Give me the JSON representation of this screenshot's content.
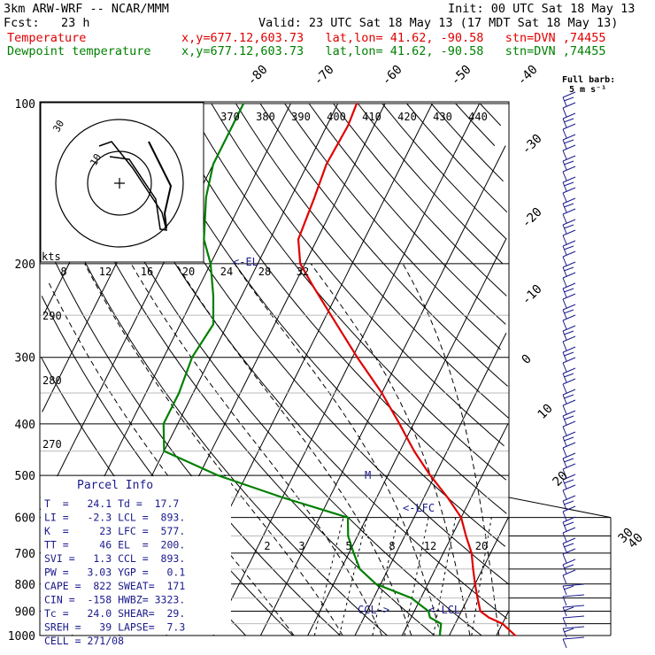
{
  "header": {
    "line1_left": "3km ARW-WRF -- NCAR/MMM",
    "line1_right": "Init: 00 UTC Sat 18 May 13",
    "fcst_label": "Fcst:   23 h",
    "valid": "Valid: 23 UTC Sat 18 May 13 (17 MDT Sat 18 May 13)",
    "series": [
      {
        "name": "Temperature",
        "color": "#e00000",
        "info": "x,y=677.12,603.73   lat,lon= 41.62, -90.58   stn=DVN ,74455"
      },
      {
        "name": "Dewpoint temperature",
        "color": "#008000",
        "info": "x,y=677.12,603.73   lat,lon= 41.62, -90.58   stn=DVN ,74455"
      }
    ]
  },
  "colors": {
    "temperature": "#e00000",
    "dewpoint": "#008000",
    "annotation": "#1a1a8c",
    "grid": "#000000"
  },
  "chart_data": {
    "type": "line",
    "title": "",
    "pressure_ticks": [
      100,
      200,
      300,
      400,
      500,
      600,
      700,
      800,
      900,
      1000
    ],
    "isotherm_labels": [
      -80,
      -70,
      -60,
      -50,
      -40,
      -30,
      -20,
      -10,
      0,
      10,
      20,
      30,
      40
    ],
    "theta_labels": [
      "370",
      "380",
      "390",
      "400",
      "410",
      "420",
      "430",
      "440"
    ],
    "theta_side_labels": [
      "290",
      "280",
      "270"
    ],
    "mixing_ratio_labels": [
      "2",
      "3",
      "5",
      "8",
      "12",
      "20"
    ],
    "hodograph": {
      "units_label": "kts",
      "speed_labels": [
        "8",
        "12",
        "16",
        "20",
        "24",
        "28",
        "32"
      ],
      "ring_labels": [
        "10",
        "30"
      ]
    },
    "wind_barb_caption": [
      "Full barb:",
      "5 m s⁻¹"
    ],
    "levels_annotation": {
      "el": "<-EL",
      "m": "M",
      "lfc": "<-LFC",
      "ccl": "CCL->",
      "lcl": "<-LCL"
    },
    "series": [
      {
        "name": "Temperature",
        "points": [
          [
            1000,
            34
          ],
          [
            950,
            30
          ],
          [
            925,
            26.5
          ],
          [
            900,
            24
          ],
          [
            850,
            22
          ],
          [
            800,
            20
          ],
          [
            750,
            18
          ],
          [
            700,
            16
          ],
          [
            650,
            13
          ],
          [
            600,
            10
          ],
          [
            550,
            5
          ],
          [
            500,
            -1
          ],
          [
            450,
            -7
          ],
          [
            400,
            -13
          ],
          [
            350,
            -20
          ],
          [
            300,
            -29
          ],
          [
            250,
            -39
          ],
          [
            220,
            -46
          ],
          [
            200,
            -51
          ],
          [
            180,
            -54
          ],
          [
            150,
            -55
          ],
          [
            130,
            -56
          ],
          [
            110,
            -55.5
          ],
          [
            100,
            -56
          ]
        ]
      },
      {
        "name": "Dewpoint temperature",
        "points": [
          [
            1000,
            18
          ],
          [
            950,
            17
          ],
          [
            925,
            14
          ],
          [
            900,
            13
          ],
          [
            850,
            8
          ],
          [
            800,
            -1
          ],
          [
            750,
            -6
          ],
          [
            700,
            -9
          ],
          [
            650,
            -12
          ],
          [
            600,
            -14
          ],
          [
            550,
            -30
          ],
          [
            500,
            -46
          ],
          [
            450,
            -60
          ],
          [
            400,
            -63
          ],
          [
            350,
            -63
          ],
          [
            300,
            -64
          ],
          [
            260,
            -63
          ],
          [
            230,
            -66
          ],
          [
            200,
            -70
          ],
          [
            180,
            -74
          ],
          [
            150,
            -78
          ],
          [
            130,
            -80
          ],
          [
            110,
            -80
          ],
          [
            100,
            -80
          ]
        ]
      }
    ]
  },
  "parcel_info": {
    "title": "Parcel Info",
    "lines": [
      "T  =   24.1 Td =  17.7",
      "LI =   -2.3 LCL =  893.",
      "K  =     23 LFC =  577.",
      "TT =     46 EL  =  200.",
      "SVI =   1.3 CCL =  893.",
      "PW =   3.03 YGP =   0.1",
      "CAPE =  822 SWEAT=  171",
      "CIN =  -158 HWBZ= 3323.",
      "Tc =   24.0 SHEAR=  29.",
      "SREH =   39 LAPSE=  7.3",
      "CELL = 271/08"
    ]
  }
}
